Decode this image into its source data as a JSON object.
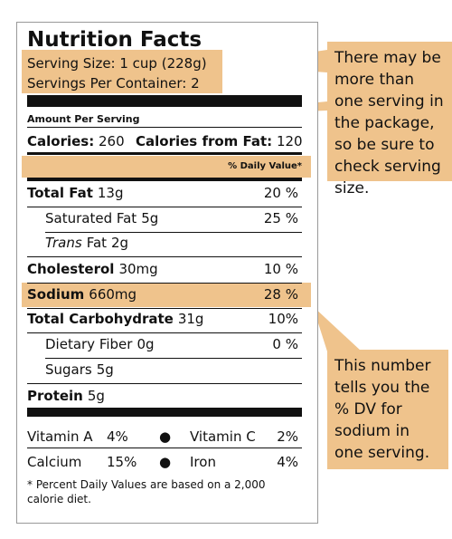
{
  "label": {
    "title": "Nutrition Facts",
    "serving_size": "Serving Size: 1 cup (228g)",
    "servings_per_container": "Servings Per Container: 2",
    "amount_per_serving": "Amount Per Serving",
    "calories": {
      "label": "Calories:",
      "value": "260"
    },
    "calories_from_fat": {
      "label": "Calories from Fat:",
      "value": "120"
    },
    "daily_value_header": "% Daily Value*",
    "rows": [
      {
        "label": "Total Fat",
        "amount": "13g",
        "dv": "20 %"
      },
      {
        "label": "Saturated Fat",
        "amount": "5g",
        "dv": "25 %"
      },
      {
        "prefix": "Trans",
        "label": "Fat",
        "amount": "2g"
      },
      {
        "label": "Cholesterol",
        "amount": "30mg",
        "dv": "10 %"
      },
      {
        "label": "Sodium",
        "amount": "660mg",
        "dv": "28 %"
      },
      {
        "label": "Total Carbohydrate",
        "amount": "31g",
        "dv": "10%"
      },
      {
        "label": "Dietary Fiber",
        "amount": "0g",
        "dv": "0 %"
      },
      {
        "label": "Sugars",
        "amount": "5g"
      },
      {
        "label": "Protein",
        "amount": "5g"
      }
    ],
    "vitamins": [
      [
        {
          "name": "Vitamin A",
          "dv": "4%"
        },
        {
          "name": "Vitamin C",
          "dv": "2%"
        }
      ],
      [
        {
          "name": "Calcium",
          "dv": "15%"
        },
        {
          "name": "Iron",
          "dv": "4%"
        }
      ]
    ],
    "footnote": "* Percent Daily Values are based on a 2,000 calorie diet."
  },
  "callouts": [
    "There may be more than one serving in the package, so be sure to check serving size.",
    "This number tells you the % DV for sodium in one serving."
  ]
}
